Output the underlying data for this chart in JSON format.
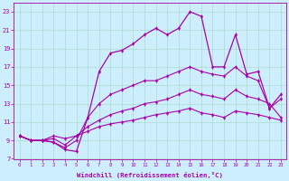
{
  "xlabel": "Windchill (Refroidissement éolien,°C)",
  "background_color": "#cceeff",
  "grid_color": "#aaddcc",
  "line_color": "#aa00aa",
  "xlim": [
    -0.5,
    23.5
  ],
  "ylim": [
    7,
    24
  ],
  "xticks": [
    0,
    1,
    2,
    3,
    4,
    5,
    6,
    7,
    8,
    9,
    10,
    11,
    12,
    13,
    14,
    15,
    16,
    17,
    18,
    19,
    20,
    21,
    22,
    23
  ],
  "yticks": [
    7,
    9,
    11,
    13,
    15,
    17,
    19,
    21,
    23
  ],
  "line_main_x": [
    0,
    1,
    2,
    3,
    4,
    5,
    6,
    7,
    8,
    9,
    10,
    11,
    12,
    13,
    14,
    15,
    16,
    17,
    18,
    19,
    20,
    21,
    22,
    23
  ],
  "line_main_y": [
    9.5,
    9.0,
    9.0,
    8.8,
    8.0,
    7.8,
    11.5,
    16.5,
    18.5,
    18.8,
    19.5,
    20.5,
    21.2,
    20.5,
    21.2,
    23.0,
    22.5,
    17.0,
    17.0,
    20.5,
    16.2,
    16.5,
    12.5,
    14.0
  ],
  "line2_x": [
    0,
    1,
    2,
    3,
    4,
    5,
    6,
    7,
    8,
    9,
    10,
    11,
    12,
    13,
    14,
    15,
    16,
    17,
    18,
    19,
    20,
    21,
    22,
    23
  ],
  "line2_y": [
    9.5,
    9.0,
    9.0,
    8.8,
    8.2,
    9.0,
    11.5,
    13.0,
    14.0,
    14.5,
    15.0,
    15.5,
    15.5,
    16.0,
    16.5,
    17.0,
    16.5,
    16.2,
    16.0,
    17.0,
    16.0,
    15.5,
    12.5,
    13.5
  ],
  "line3_x": [
    0,
    1,
    2,
    3,
    4,
    5,
    6,
    7,
    8,
    9,
    10,
    11,
    12,
    13,
    14,
    15,
    16,
    17,
    18,
    19,
    20,
    21,
    22,
    23
  ],
  "line3_y": [
    9.5,
    9.0,
    9.0,
    9.2,
    8.5,
    9.5,
    10.5,
    11.2,
    11.8,
    12.2,
    12.5,
    13.0,
    13.2,
    13.5,
    14.0,
    14.5,
    14.0,
    13.8,
    13.5,
    14.5,
    13.8,
    13.5,
    13.0,
    11.5
  ],
  "line4_x": [
    0,
    1,
    2,
    3,
    4,
    5,
    6,
    7,
    8,
    9,
    10,
    11,
    12,
    13,
    14,
    15,
    16,
    17,
    18,
    19,
    20,
    21,
    22,
    23
  ],
  "line4_y": [
    9.5,
    9.0,
    9.0,
    9.5,
    9.2,
    9.5,
    10.0,
    10.5,
    10.8,
    11.0,
    11.2,
    11.5,
    11.8,
    12.0,
    12.2,
    12.5,
    12.0,
    11.8,
    11.5,
    12.2,
    12.0,
    11.8,
    11.5,
    11.2
  ]
}
